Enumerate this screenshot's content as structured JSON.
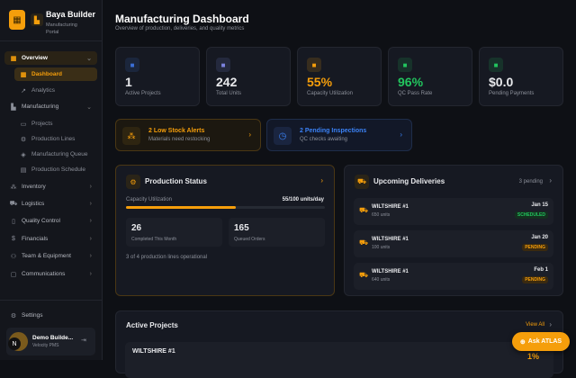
{
  "sidebar": {
    "brand": "Baya Builder",
    "subtitle": "Manufacturing Portal",
    "items": [
      {
        "label": "Overview",
        "icon": "grid-icon"
      },
      {
        "label": "Dashboard",
        "icon": "grid-icon"
      },
      {
        "label": "Analytics",
        "icon": "trend-icon"
      },
      {
        "label": "Manufacturing",
        "icon": "factory-icon"
      },
      {
        "label": "Projects",
        "icon": "folder-icon"
      },
      {
        "label": "Production Lines",
        "icon": "gear-icon"
      },
      {
        "label": "Manufacturing Queue",
        "icon": "box-icon"
      },
      {
        "label": "Production Schedule",
        "icon": "calendar-icon"
      },
      {
        "label": "Inventory",
        "icon": "boxes-icon"
      },
      {
        "label": "Logistics",
        "icon": "truck-icon"
      },
      {
        "label": "Quality Control",
        "icon": "clipboard-icon"
      },
      {
        "label": "Financials",
        "icon": "dollar-icon"
      },
      {
        "label": "Team & Equipment",
        "icon": "users-icon"
      },
      {
        "label": "Communications",
        "icon": "chat-icon"
      }
    ],
    "settings": "Settings",
    "user_name": "Demo Builde...",
    "user_org": "Velocity PMS",
    "avatar_letter": "N"
  },
  "header": {
    "title": "Manufacturing Dashboard",
    "subtitle": "Overview of production, deliveries, and quality metrics"
  },
  "stats": [
    {
      "value": "1",
      "label": "Active Projects",
      "color": "#e8e9ec",
      "icon_color": "#3b6fd8"
    },
    {
      "value": "242",
      "label": "Total Units",
      "color": "#e8e9ec",
      "icon_color": "#7c83e0"
    },
    {
      "value": "55%",
      "label": "Capacity Utilization",
      "color": "#f59e0b",
      "icon_color": "#f59e0b"
    },
    {
      "value": "96%",
      "label": "QC Pass Rate",
      "color": "#22c55e",
      "icon_color": "#22c55e"
    },
    {
      "value": "$0.0",
      "label": "Pending Payments",
      "color": "#e8e9ec",
      "icon_color": "#22c55e"
    }
  ],
  "alerts": [
    {
      "title": "2 Low Stock Alerts",
      "desc": "Materials need restocking"
    },
    {
      "title": "2 Pending Inspections",
      "desc": "QC checks awaiting"
    }
  ],
  "production": {
    "title": "Production Status",
    "cap_label": "Capacity Utilization",
    "cap_value": "55/100 units/day",
    "progress": 55,
    "completed": "26",
    "completed_label": "Completed This Month",
    "queued": "165",
    "queued_label": "Queued Orders",
    "lines": "3 of 4 production lines operational"
  },
  "deliveries": {
    "title": "Upcoming Deliveries",
    "count": "3 pending",
    "items": [
      {
        "name": "WILTSHIRE #1",
        "units": "650 units",
        "date": "Jan 15",
        "status": "SCHEDULED"
      },
      {
        "name": "WILTSHIRE #1",
        "units": "100 units",
        "date": "Jan 20",
        "status": "PENDING"
      },
      {
        "name": "WILTSHIRE #1",
        "units": "640 units",
        "date": "Feb 1",
        "status": "PENDING"
      }
    ]
  },
  "projects": {
    "title": "Active Projects",
    "view_all": "View All",
    "items": [
      {
        "name": "WILTSHIRE #1",
        "progress": "1%"
      }
    ]
  },
  "atlas": "Ask ATLAS"
}
